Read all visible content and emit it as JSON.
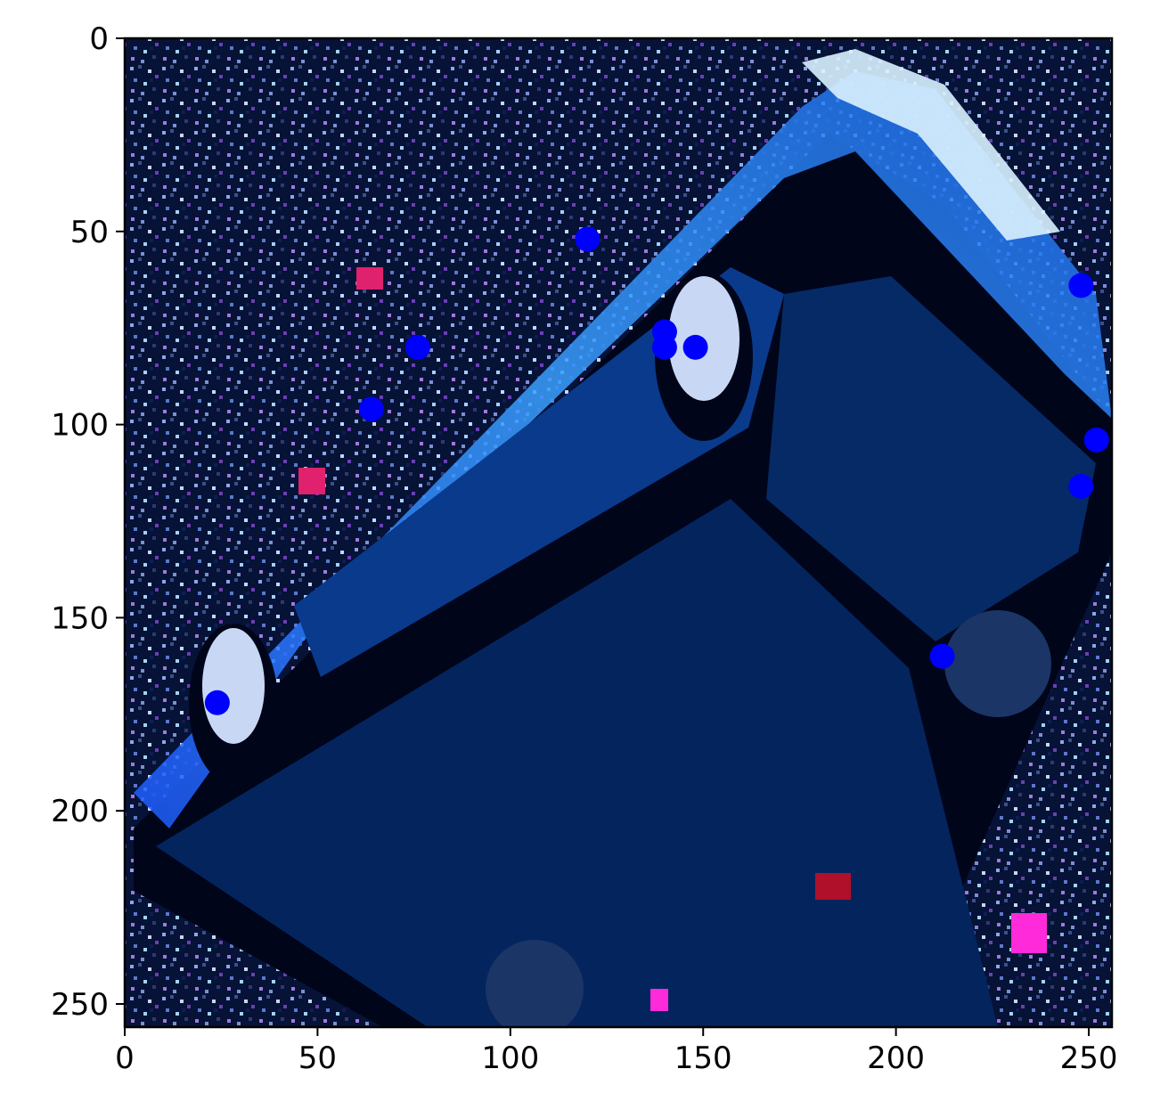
{
  "chart_data": {
    "type": "scatter",
    "title": "",
    "xlabel": "",
    "ylabel": "",
    "xlim": [
      0,
      256
    ],
    "ylim": [
      256,
      0
    ],
    "y_inverted": true,
    "grid": false,
    "legend": "none",
    "background": "image",
    "x_ticks": [
      0,
      50,
      100,
      150,
      200,
      250
    ],
    "y_ticks": [
      0,
      50,
      100,
      150,
      200,
      250
    ],
    "x_tick_labels": [
      "0",
      "50",
      "100",
      "150",
      "200",
      "250"
    ],
    "y_tick_labels": [
      "0",
      "50",
      "100",
      "150",
      "200",
      "250"
    ],
    "marker_color": "#0000ff",
    "points": [
      {
        "x": 120,
        "y": 52
      },
      {
        "x": 248,
        "y": 64
      },
      {
        "x": 76,
        "y": 80
      },
      {
        "x": 140,
        "y": 76
      },
      {
        "x": 140,
        "y": 80
      },
      {
        "x": 148,
        "y": 80
      },
      {
        "x": 64,
        "y": 96
      },
      {
        "x": 252,
        "y": 104
      },
      {
        "x": 248,
        "y": 116
      },
      {
        "x": 212,
        "y": 160
      },
      {
        "x": 24,
        "y": 172
      }
    ]
  },
  "colors": {
    "image_dark": "#020a2a",
    "car_body": "#04245e",
    "edge_highlight": "#2a7cff",
    "bright_highlight": "#bfe6ff",
    "marker": "#0000ff"
  }
}
